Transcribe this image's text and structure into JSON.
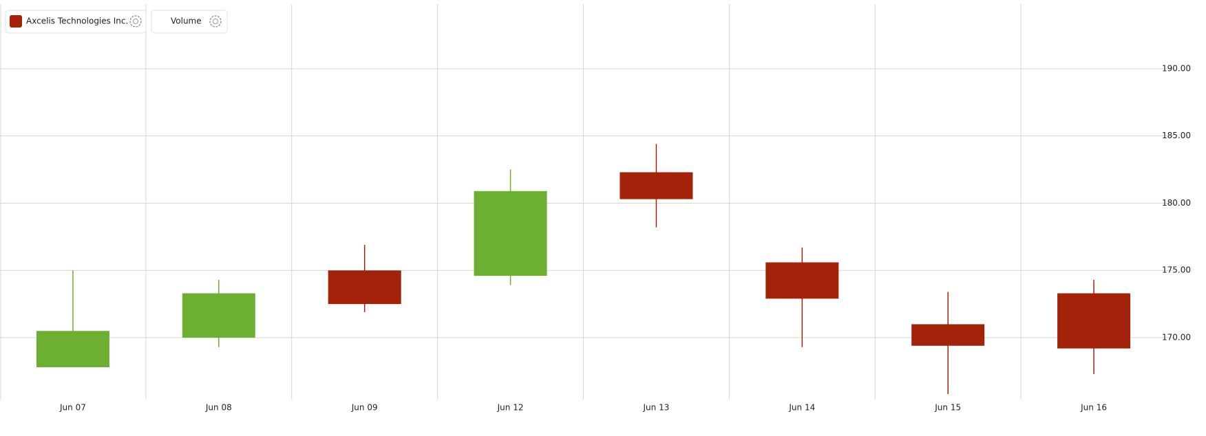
{
  "chart_data": {
    "type": "candlestick",
    "legend": [
      "Axcelis Technologies Inc.",
      "Volume"
    ],
    "categories": [
      "Jun 07",
      "Jun 08",
      "Jun 09",
      "Jun 12",
      "Jun 13",
      "Jun 14",
      "Jun 15",
      "Jun 16"
    ],
    "open": [
      167.8,
      170.0,
      175.0,
      174.6,
      182.3,
      175.6,
      171.0,
      173.3
    ],
    "high": [
      175.0,
      174.3,
      176.9,
      182.5,
      184.4,
      176.7,
      173.4,
      174.3
    ],
    "low": [
      167.8,
      169.3,
      171.9,
      173.9,
      178.2,
      169.3,
      165.8,
      167.3
    ],
    "close": [
      170.5,
      173.3,
      172.5,
      180.9,
      180.3,
      172.9,
      169.4,
      169.2
    ],
    "up_color": "#6daf30",
    "down_color": "#a3220a",
    "ylim": [
      165.4,
      194.8
    ],
    "yticks": [
      {
        "value": 170,
        "label": "170.00"
      },
      {
        "value": 175,
        "label": "175.00"
      },
      {
        "value": 180,
        "label": "180.00"
      },
      {
        "value": 185,
        "label": "185.00"
      },
      {
        "value": 190,
        "label": "190.00"
      }
    ],
    "grid": true
  }
}
